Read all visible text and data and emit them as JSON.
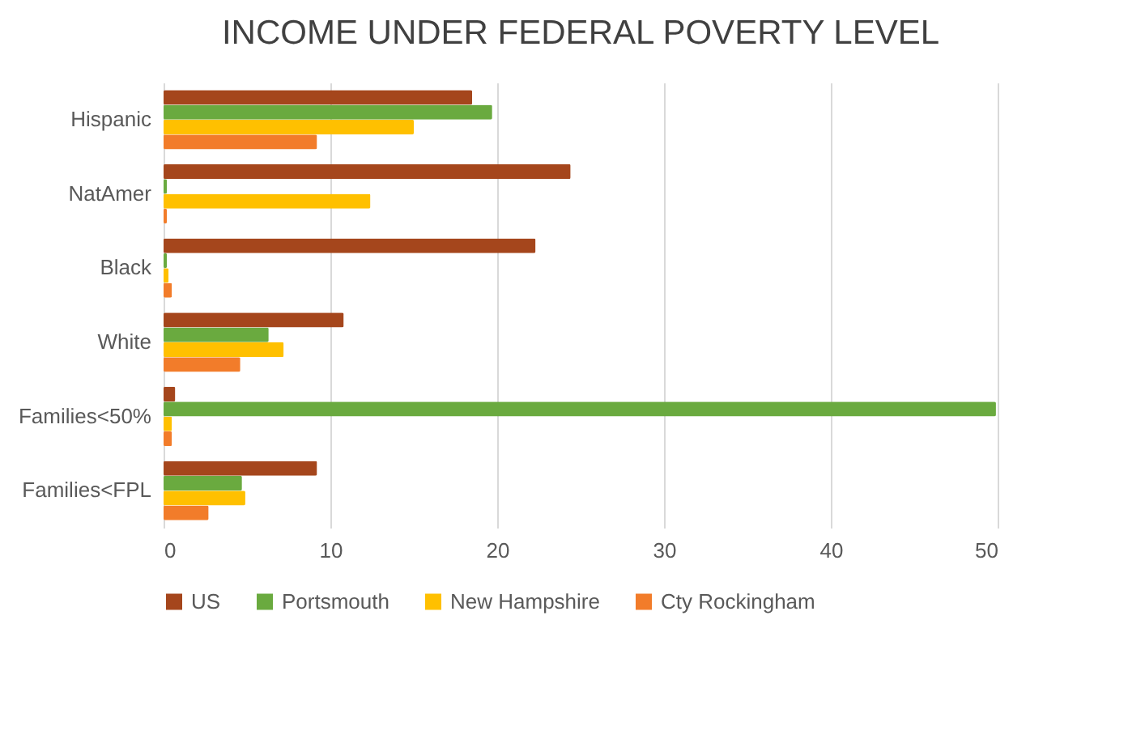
{
  "chart_data": {
    "type": "bar",
    "orientation": "horizontal",
    "title": "INCOME UNDER FEDERAL POVERTY LEVEL",
    "categories": [
      "Hispanic",
      "NatAmer",
      "Black",
      "White",
      "Families<50%",
      "Families<FPL"
    ],
    "series": [
      {
        "name": "US",
        "color": "#a5461c",
        "values": [
          18.5,
          24.4,
          22.3,
          10.8,
          0.7,
          9.2
        ]
      },
      {
        "name": "Portsmouth",
        "color": "#6aaa3f",
        "values": [
          19.7,
          0.2,
          0.2,
          6.3,
          49.9,
          4.7
        ]
      },
      {
        "name": "New Hampshire",
        "color": "#ffc000",
        "values": [
          15,
          12.4,
          0.3,
          7.2,
          0.5,
          4.9
        ]
      },
      {
        "name": "Cty Rockingham",
        "color": "#f27c2a",
        "values": [
          9.2,
          0.2,
          0.5,
          4.6,
          0.5,
          2.7
        ]
      }
    ],
    "xlim": [
      0,
      50
    ],
    "xticks": [
      0,
      10,
      20,
      30,
      40,
      50
    ],
    "grid": "x",
    "legend": "bottom"
  }
}
